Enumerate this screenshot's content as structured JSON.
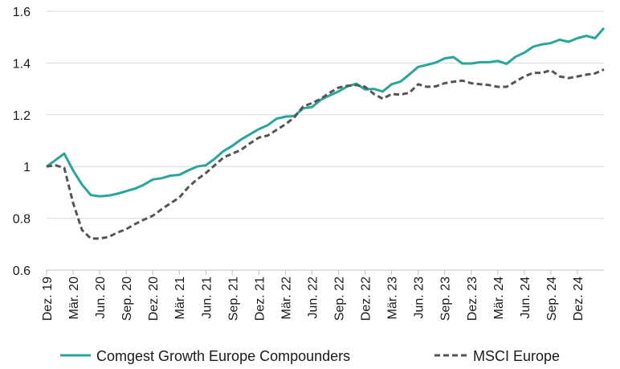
{
  "chart_data": {
    "type": "line",
    "title": "",
    "xlabel": "",
    "ylabel": "",
    "ylim": [
      0.6,
      1.6
    ],
    "yticks": [
      "0.6",
      "0.8",
      "1",
      "1.2",
      "1.4",
      "1.6"
    ],
    "x_tick_labels": [
      "Dez. 19",
      "Mär. 20",
      "Jun. 20",
      "Sep. 20",
      "Dez. 20",
      "Mär. 21",
      "Jun. 21",
      "Sep. 21",
      "Dez. 21",
      "Mär. 22",
      "Jun. 22",
      "Sep. 22",
      "Dez. 22",
      "Mär. 23",
      "Jun. 23",
      "Sep. 23",
      "Dez. 23",
      "Mär. 24",
      "Jun. 24",
      "Sep. 24",
      "Dez. 24"
    ],
    "grid": "horizontal",
    "legend": "bottom",
    "series": [
      {
        "name": "Comgest Growth Europe Compounders",
        "color": "#2aa59a",
        "style": "solid",
        "points": [
          [
            0,
            1.0
          ],
          [
            1,
            1.025
          ],
          [
            2,
            1.05
          ],
          [
            3,
            0.985
          ],
          [
            4,
            0.93
          ],
          [
            5,
            0.89
          ],
          [
            6,
            0.885
          ],
          [
            7,
            0.888
          ],
          [
            8,
            0.895
          ],
          [
            9,
            0.905
          ],
          [
            10,
            0.915
          ],
          [
            11,
            0.93
          ],
          [
            12,
            0.95
          ],
          [
            13,
            0.955
          ],
          [
            14,
            0.965
          ],
          [
            15,
            0.968
          ],
          [
            16,
            0.985
          ],
          [
            17,
            1.0
          ],
          [
            18,
            1.005
          ],
          [
            19,
            1.03
          ],
          [
            20,
            1.06
          ],
          [
            21,
            1.08
          ],
          [
            22,
            1.105
          ],
          [
            23,
            1.125
          ],
          [
            24,
            1.145
          ],
          [
            25,
            1.16
          ],
          [
            26,
            1.185
          ],
          [
            27,
            1.193
          ],
          [
            28,
            1.195
          ],
          [
            29,
            1.225
          ],
          [
            30,
            1.23
          ],
          [
            31,
            1.258
          ],
          [
            32,
            1.275
          ],
          [
            33,
            1.29
          ],
          [
            34,
            1.31
          ],
          [
            35,
            1.32
          ],
          [
            36,
            1.298
          ],
          [
            37,
            1.3
          ],
          [
            38,
            1.29
          ],
          [
            39,
            1.318
          ],
          [
            40,
            1.328
          ],
          [
            41,
            1.356
          ],
          [
            42,
            1.385
          ],
          [
            43,
            1.393
          ],
          [
            44,
            1.402
          ],
          [
            45,
            1.418
          ],
          [
            46,
            1.423
          ],
          [
            47,
            1.398
          ],
          [
            48,
            1.398
          ],
          [
            49,
            1.403
          ],
          [
            50,
            1.403
          ],
          [
            51,
            1.408
          ],
          [
            52,
            1.397
          ],
          [
            53,
            1.424
          ],
          [
            54,
            1.44
          ],
          [
            55,
            1.463
          ],
          [
            56,
            1.472
          ],
          [
            57,
            1.477
          ],
          [
            58,
            1.49
          ],
          [
            59,
            1.482
          ],
          [
            60,
            1.496
          ],
          [
            61,
            1.505
          ],
          [
            62,
            1.496
          ],
          [
            63,
            1.535
          ]
        ]
      },
      {
        "name": "MSCI Europe",
        "color": "#555555",
        "style": "dashed",
        "points": [
          [
            0,
            1.0
          ],
          [
            1,
            1.005
          ],
          [
            2,
            0.995
          ],
          [
            3,
            0.86
          ],
          [
            4,
            0.755
          ],
          [
            5,
            0.722
          ],
          [
            6,
            0.722
          ],
          [
            7,
            0.728
          ],
          [
            8,
            0.745
          ],
          [
            9,
            0.758
          ],
          [
            10,
            0.778
          ],
          [
            11,
            0.795
          ],
          [
            12,
            0.81
          ],
          [
            13,
            0.835
          ],
          [
            14,
            0.858
          ],
          [
            15,
            0.88
          ],
          [
            16,
            0.92
          ],
          [
            17,
            0.95
          ],
          [
            18,
            0.975
          ],
          [
            19,
            1.005
          ],
          [
            20,
            1.035
          ],
          [
            21,
            1.05
          ],
          [
            22,
            1.065
          ],
          [
            23,
            1.09
          ],
          [
            24,
            1.112
          ],
          [
            25,
            1.12
          ],
          [
            26,
            1.142
          ],
          [
            27,
            1.163
          ],
          [
            28,
            1.19
          ],
          [
            29,
            1.232
          ],
          [
            30,
            1.245
          ],
          [
            31,
            1.262
          ],
          [
            32,
            1.285
          ],
          [
            33,
            1.305
          ],
          [
            34,
            1.312
          ],
          [
            35,
            1.315
          ],
          [
            36,
            1.308
          ],
          [
            37,
            1.28
          ],
          [
            38,
            1.262
          ],
          [
            39,
            1.28
          ],
          [
            40,
            1.278
          ],
          [
            41,
            1.285
          ],
          [
            42,
            1.318
          ],
          [
            43,
            1.308
          ],
          [
            44,
            1.31
          ],
          [
            45,
            1.322
          ],
          [
            46,
            1.328
          ],
          [
            47,
            1.332
          ],
          [
            48,
            1.322
          ],
          [
            49,
            1.318
          ],
          [
            50,
            1.315
          ],
          [
            51,
            1.308
          ],
          [
            52,
            1.308
          ],
          [
            53,
            1.328
          ],
          [
            54,
            1.348
          ],
          [
            55,
            1.362
          ],
          [
            56,
            1.362
          ],
          [
            57,
            1.372
          ],
          [
            58,
            1.348
          ],
          [
            59,
            1.342
          ],
          [
            60,
            1.348
          ],
          [
            61,
            1.355
          ],
          [
            62,
            1.36
          ],
          [
            63,
            1.375
          ]
        ]
      }
    ]
  }
}
